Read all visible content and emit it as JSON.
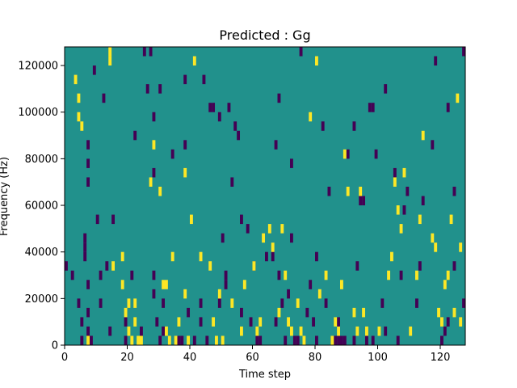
{
  "chart_data": {
    "type": "heatmap",
    "title": "Predicted : Gg",
    "xlabel": "Time step",
    "ylabel": "Frequency (Hz)",
    "xlim": [
      0,
      128
    ],
    "ylim": [
      0,
      128000
    ],
    "x_ticks": [
      0,
      20,
      40,
      60,
      80,
      100,
      120
    ],
    "y_ticks": [
      0,
      20000,
      40000,
      60000,
      80000,
      100000,
      120000
    ],
    "x_tick_labels": [
      "0",
      "20",
      "40",
      "60",
      "80",
      "100",
      "120"
    ],
    "y_tick_labels": [
      "0",
      "20000",
      "40000",
      "60000",
      "80000",
      "100000",
      "120000"
    ],
    "grid": false,
    "bin_height": 4000,
    "colormap": {
      "background": "#21918c",
      "low": "#440154",
      "high": "#fde725"
    },
    "cells_low": [
      [
        0,
        32000
      ],
      [
        2,
        28000
      ],
      [
        4,
        16000
      ],
      [
        5,
        8000
      ],
      [
        5,
        0
      ],
      [
        6,
        44000
      ],
      [
        6,
        36000
      ],
      [
        6,
        40000
      ],
      [
        7,
        84000
      ],
      [
        7,
        76000
      ],
      [
        7,
        68000
      ],
      [
        7,
        24000
      ],
      [
        7,
        12000
      ],
      [
        7,
        4000
      ],
      [
        8,
        0
      ],
      [
        9,
        116000
      ],
      [
        10,
        52000
      ],
      [
        11,
        28000
      ],
      [
        11,
        16000
      ],
      [
        12,
        104000
      ],
      [
        13,
        32000
      ],
      [
        14,
        4000
      ],
      [
        15,
        52000
      ],
      [
        19,
        8000
      ],
      [
        19,
        0
      ],
      [
        21,
        28000
      ],
      [
        22,
        88000
      ],
      [
        24,
        4000
      ],
      [
        25,
        124000
      ],
      [
        26,
        108000
      ],
      [
        27,
        124000
      ],
      [
        28,
        96000
      ],
      [
        28,
        72000
      ],
      [
        28,
        28000
      ],
      [
        28,
        20000
      ],
      [
        29,
        8000
      ],
      [
        30,
        108000
      ],
      [
        30,
        0
      ],
      [
        31,
        16000
      ],
      [
        31,
        4000
      ],
      [
        34,
        80000
      ],
      [
        35,
        0
      ],
      [
        36,
        0
      ],
      [
        37,
        0
      ],
      [
        38,
        112000
      ],
      [
        38,
        84000
      ],
      [
        39,
        12000
      ],
      [
        41,
        0
      ],
      [
        43,
        16000
      ],
      [
        43,
        8000
      ],
      [
        44,
        112000
      ],
      [
        45,
        0
      ],
      [
        46,
        100000
      ],
      [
        47,
        100000
      ],
      [
        49,
        96000
      ],
      [
        49,
        16000
      ],
      [
        50,
        44000
      ],
      [
        51,
        28000
      ],
      [
        51,
        24000
      ],
      [
        52,
        100000
      ],
      [
        53,
        68000
      ],
      [
        54,
        92000
      ],
      [
        55,
        88000
      ],
      [
        56,
        52000
      ],
      [
        56,
        12000
      ],
      [
        58,
        48000
      ],
      [
        59,
        8000
      ],
      [
        60,
        32000
      ],
      [
        61,
        0
      ],
      [
        62,
        0
      ],
      [
        64,
        36000
      ],
      [
        66,
        36000
      ],
      [
        67,
        84000
      ],
      [
        67,
        8000
      ],
      [
        68,
        104000
      ],
      [
        68,
        28000
      ],
      [
        69,
        16000
      ],
      [
        70,
        0
      ],
      [
        71,
        20000
      ],
      [
        72,
        76000
      ],
      [
        72,
        44000
      ],
      [
        73,
        0
      ],
      [
        74,
        0
      ],
      [
        75,
        124000
      ],
      [
        76,
        0
      ],
      [
        77,
        12000
      ],
      [
        78,
        24000
      ],
      [
        79,
        8000
      ],
      [
        80,
        36000
      ],
      [
        80,
        0
      ],
      [
        82,
        92000
      ],
      [
        83,
        16000
      ],
      [
        84,
        64000
      ],
      [
        85,
        0
      ],
      [
        86,
        0
      ],
      [
        87,
        8000
      ],
      [
        87,
        0
      ],
      [
        88,
        0
      ],
      [
        89,
        0
      ],
      [
        90,
        80000
      ],
      [
        92,
        92000
      ],
      [
        92,
        0
      ],
      [
        93,
        32000
      ],
      [
        94,
        60000
      ],
      [
        95,
        60000
      ],
      [
        96,
        0
      ],
      [
        97,
        100000
      ],
      [
        98,
        100000
      ],
      [
        98,
        0
      ],
      [
        99,
        80000
      ],
      [
        101,
        16000
      ],
      [
        102,
        108000
      ],
      [
        102,
        4000
      ],
      [
        105,
        72000
      ],
      [
        106,
        0
      ],
      [
        107,
        28000
      ],
      [
        108,
        56000
      ],
      [
        109,
        64000
      ],
      [
        112,
        16000
      ],
      [
        113,
        32000
      ],
      [
        114,
        60000
      ],
      [
        117,
        84000
      ],
      [
        118,
        120000
      ],
      [
        120,
        0
      ],
      [
        121,
        4000
      ],
      [
        122,
        100000
      ],
      [
        122,
        8000
      ],
      [
        124,
        64000
      ],
      [
        124,
        32000
      ],
      [
        127,
        124000
      ],
      [
        127,
        16000
      ]
    ],
    "cells_high": [
      [
        3,
        112000
      ],
      [
        4,
        96000
      ],
      [
        4,
        104000
      ],
      [
        5,
        92000
      ],
      [
        7,
        0
      ],
      [
        14,
        124000
      ],
      [
        14,
        120000
      ],
      [
        15,
        32000
      ],
      [
        18,
        36000
      ],
      [
        18,
        24000
      ],
      [
        19,
        12000
      ],
      [
        20,
        16000
      ],
      [
        20,
        4000
      ],
      [
        21,
        0
      ],
      [
        22,
        16000
      ],
      [
        22,
        8000
      ],
      [
        23,
        0
      ],
      [
        24,
        0
      ],
      [
        27,
        68000
      ],
      [
        28,
        84000
      ],
      [
        30,
        64000
      ],
      [
        31,
        24000
      ],
      [
        32,
        24000
      ],
      [
        32,
        4000
      ],
      [
        33,
        0
      ],
      [
        34,
        36000
      ],
      [
        35,
        0
      ],
      [
        36,
        8000
      ],
      [
        38,
        72000
      ],
      [
        38,
        20000
      ],
      [
        39,
        0
      ],
      [
        40,
        52000
      ],
      [
        41,
        120000
      ],
      [
        43,
        36000
      ],
      [
        46,
        32000
      ],
      [
        47,
        8000
      ],
      [
        48,
        0
      ],
      [
        49,
        20000
      ],
      [
        50,
        0
      ],
      [
        53,
        16000
      ],
      [
        56,
        4000
      ],
      [
        57,
        24000
      ],
      [
        60,
        32000
      ],
      [
        61,
        4000
      ],
      [
        62,
        8000
      ],
      [
        63,
        44000
      ],
      [
        65,
        48000
      ],
      [
        66,
        40000
      ],
      [
        68,
        12000
      ],
      [
        69,
        48000
      ],
      [
        70,
        28000
      ],
      [
        71,
        8000
      ],
      [
        72,
        4000
      ],
      [
        74,
        16000
      ],
      [
        75,
        4000
      ],
      [
        76,
        0
      ],
      [
        78,
        96000
      ],
      [
        80,
        120000
      ],
      [
        81,
        20000
      ],
      [
        83,
        28000
      ],
      [
        85,
        0
      ],
      [
        86,
        8000
      ],
      [
        87,
        4000
      ],
      [
        88,
        24000
      ],
      [
        89,
        80000
      ],
      [
        90,
        64000
      ],
      [
        92,
        12000
      ],
      [
        93,
        4000
      ],
      [
        94,
        64000
      ],
      [
        95,
        12000
      ],
      [
        96,
        4000
      ],
      [
        100,
        4000
      ],
      [
        103,
        28000
      ],
      [
        104,
        36000
      ],
      [
        105,
        68000
      ],
      [
        106,
        56000
      ],
      [
        107,
        48000
      ],
      [
        108,
        72000
      ],
      [
        110,
        4000
      ],
      [
        112,
        28000
      ],
      [
        113,
        52000
      ],
      [
        114,
        88000
      ],
      [
        117,
        44000
      ],
      [
        118,
        40000
      ],
      [
        119,
        12000
      ],
      [
        120,
        8000
      ],
      [
        121,
        24000
      ],
      [
        122,
        28000
      ],
      [
        123,
        52000
      ],
      [
        124,
        12000
      ],
      [
        125,
        104000
      ],
      [
        126,
        40000
      ],
      [
        126,
        8000
      ]
    ]
  }
}
